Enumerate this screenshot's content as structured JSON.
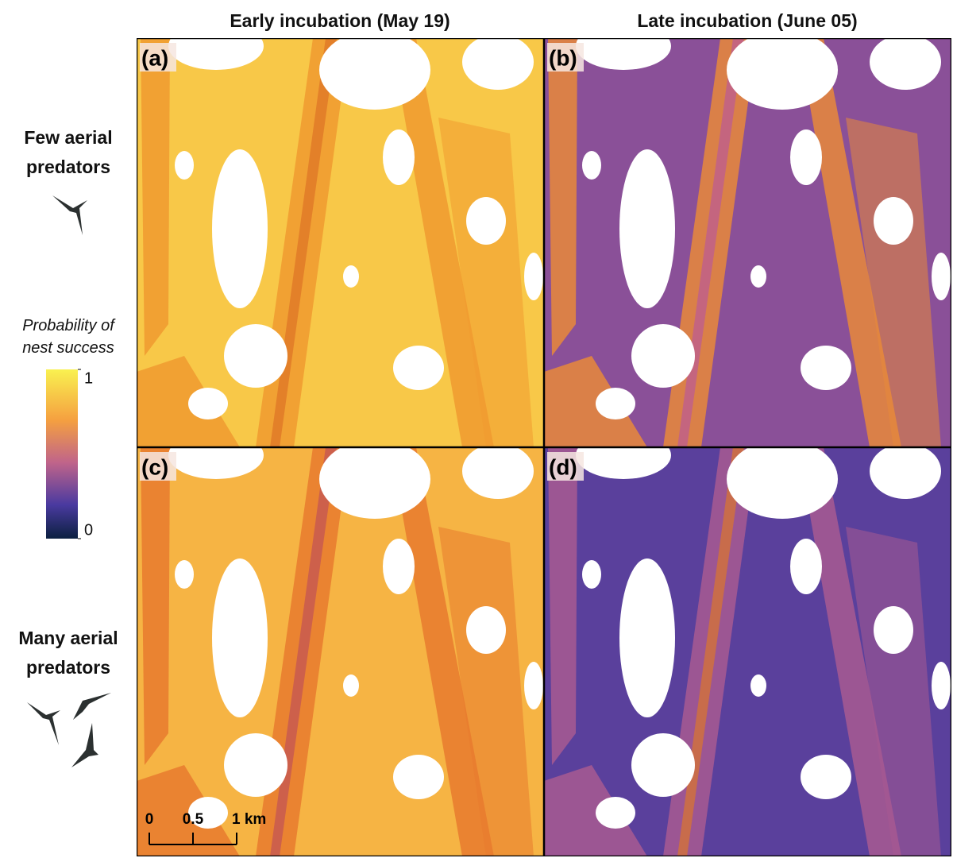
{
  "column_titles": [
    "Early incubation (May 19)",
    "Late incubation (June 05)"
  ],
  "row_labels": [
    "Few aerial predators",
    "Many aerial predators"
  ],
  "legend": {
    "title": "Probability of nest success",
    "ticks": [
      1,
      0
    ]
  },
  "panels": [
    {
      "label": "(a)"
    },
    {
      "label": "(b)"
    },
    {
      "label": "(c)"
    },
    {
      "label": "(d)"
    }
  ],
  "scale_bar": {
    "labels": [
      "0",
      "0.5",
      "1 km"
    ]
  }
}
